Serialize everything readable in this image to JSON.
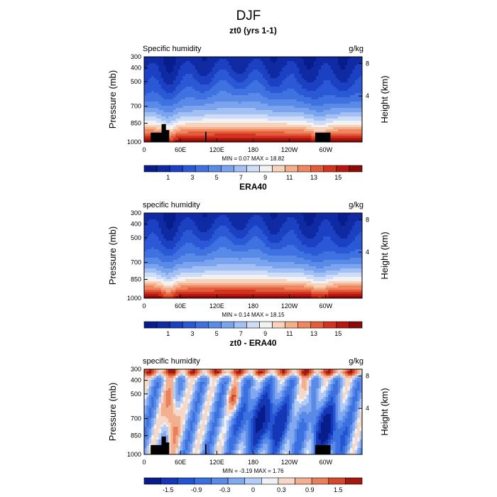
{
  "page_title": "DJF",
  "chart_data": [
    {
      "type": "heatmap",
      "title": "zt0 (yrs 1-1)",
      "subtitle_left": "Specific humidity",
      "subtitle_right": "g/kg",
      "ylabel": "Pressure (mb)",
      "ylabel_right": "Height (km)",
      "x_ticks": [
        "0",
        "60E",
        "120E",
        "180",
        "120W",
        "60W"
      ],
      "y_ticks": [
        "300",
        "400",
        "500",
        "700",
        "850",
        "1000"
      ],
      "y_ticks_right": [
        "8",
        "4"
      ],
      "stats": {
        "min_label": "MIN =",
        "min": "0.07",
        "max_label": "MAX =",
        "max": "18.82"
      },
      "colorbar_labels": [
        "1",
        "3",
        "5",
        "7",
        "9",
        "11",
        "13",
        "15"
      ],
      "field": "humidity",
      "topography": true
    },
    {
      "type": "heatmap",
      "title": "ERA40",
      "subtitle_left": "specific humidity",
      "subtitle_right": "g/kg",
      "ylabel": "Pressure (mb)",
      "ylabel_right": "Height (km)",
      "x_ticks": [
        "0",
        "60E",
        "120E",
        "180",
        "120W",
        "60W"
      ],
      "y_ticks": [
        "300",
        "400",
        "500",
        "700",
        "850",
        "1000"
      ],
      "y_ticks_right": [
        "8",
        "4"
      ],
      "stats": {
        "min_label": "MIN =",
        "min": "0.14",
        "max_label": "MAX =",
        "max": "18.15"
      },
      "colorbar_labels": [
        "1",
        "3",
        "5",
        "7",
        "9",
        "11",
        "13",
        "15"
      ],
      "field": "humidity",
      "topography": false
    },
    {
      "type": "heatmap",
      "title": "zt0 - ERA40",
      "subtitle_left": "specific humidity",
      "subtitle_right": "g/kg",
      "ylabel": "Pressure (mb)",
      "ylabel_right": "Height (km)",
      "x_ticks": [
        "0",
        "60E",
        "120E",
        "180",
        "120W",
        "60W"
      ],
      "y_ticks": [
        "300",
        "400",
        "500",
        "700",
        "850",
        "1000"
      ],
      "y_ticks_right": [
        "8",
        "4"
      ],
      "stats": {
        "min_label": "MIN =",
        "min": "-3.19",
        "max_label": "MAX =",
        "max": "1.76"
      },
      "colorbar_labels": [
        "-1.5",
        "-0.9",
        "-0.3",
        "0",
        "0.3",
        "0.9",
        "1.5"
      ],
      "field": "difference",
      "topography": true
    }
  ],
  "colors": {
    "humidity_scale": [
      "#081d8c",
      "#0f2aa3",
      "#1c40c2",
      "#2b59d6",
      "#3f72e0",
      "#5a8ae8",
      "#7ba4ef",
      "#a3c0f5",
      "#cddcf8",
      "#f2f2f2",
      "#f7d2bc",
      "#f4ae8a",
      "#ee8660",
      "#e35d3b",
      "#d2341f",
      "#b61710",
      "#8c0a08"
    ],
    "difference_scale": [
      "#081d8c",
      "#1537b5",
      "#2554d3",
      "#3a70e0",
      "#5a8ae8",
      "#82a8ef",
      "#b3ccf5",
      "#eef1f6",
      "#f7d8c6",
      "#f2b090",
      "#e8805c",
      "#d4492c",
      "#a6170d"
    ],
    "topography": "#000000"
  }
}
